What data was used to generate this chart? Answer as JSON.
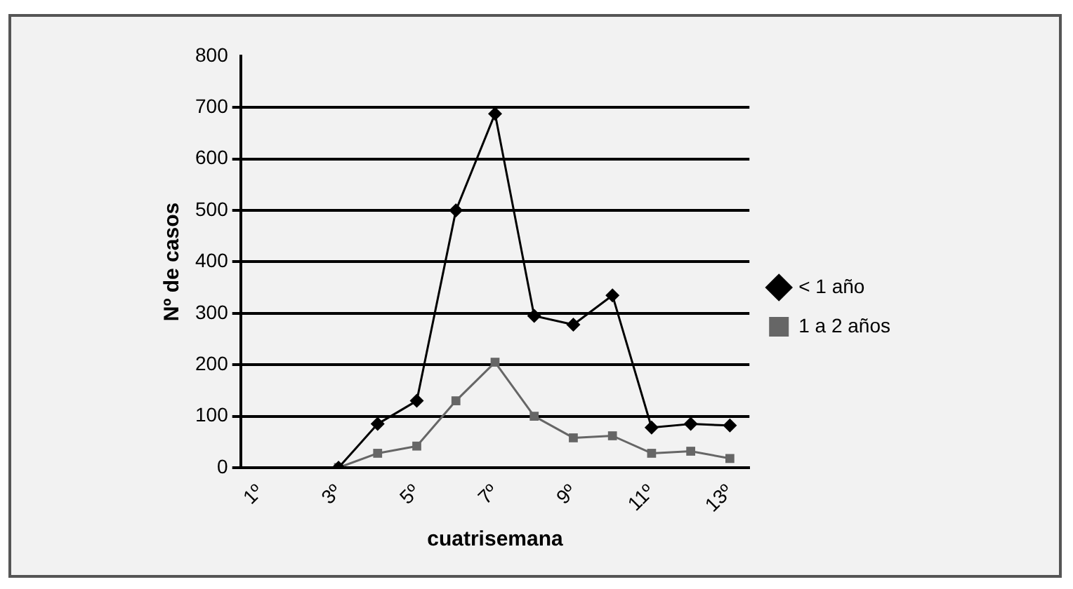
{
  "chart_data": {
    "type": "line",
    "xlabel": "cuatrisemana",
    "ylabel": "Nº de casos",
    "categories": [
      "1º",
      null,
      "3º",
      null,
      "5º",
      null,
      "7º",
      null,
      "9º",
      null,
      "11º",
      null,
      "13º"
    ],
    "series": [
      {
        "name": "< 1 año",
        "color": "#000000",
        "marker": "diamond",
        "values": [
          null,
          null,
          0,
          85,
          130,
          500,
          688,
          295,
          278,
          335,
          78,
          85,
          82
        ]
      },
      {
        "name": "1 a 2 años",
        "color": "#666666",
        "marker": "square",
        "values": [
          null,
          null,
          0,
          28,
          42,
          130,
          205,
          100,
          58,
          62,
          28,
          32,
          18
        ]
      }
    ],
    "ylim": [
      0,
      800
    ],
    "yticks": [
      0,
      100,
      200,
      300,
      400,
      500,
      600,
      700,
      800
    ],
    "grid": "y",
    "legend": "right"
  }
}
